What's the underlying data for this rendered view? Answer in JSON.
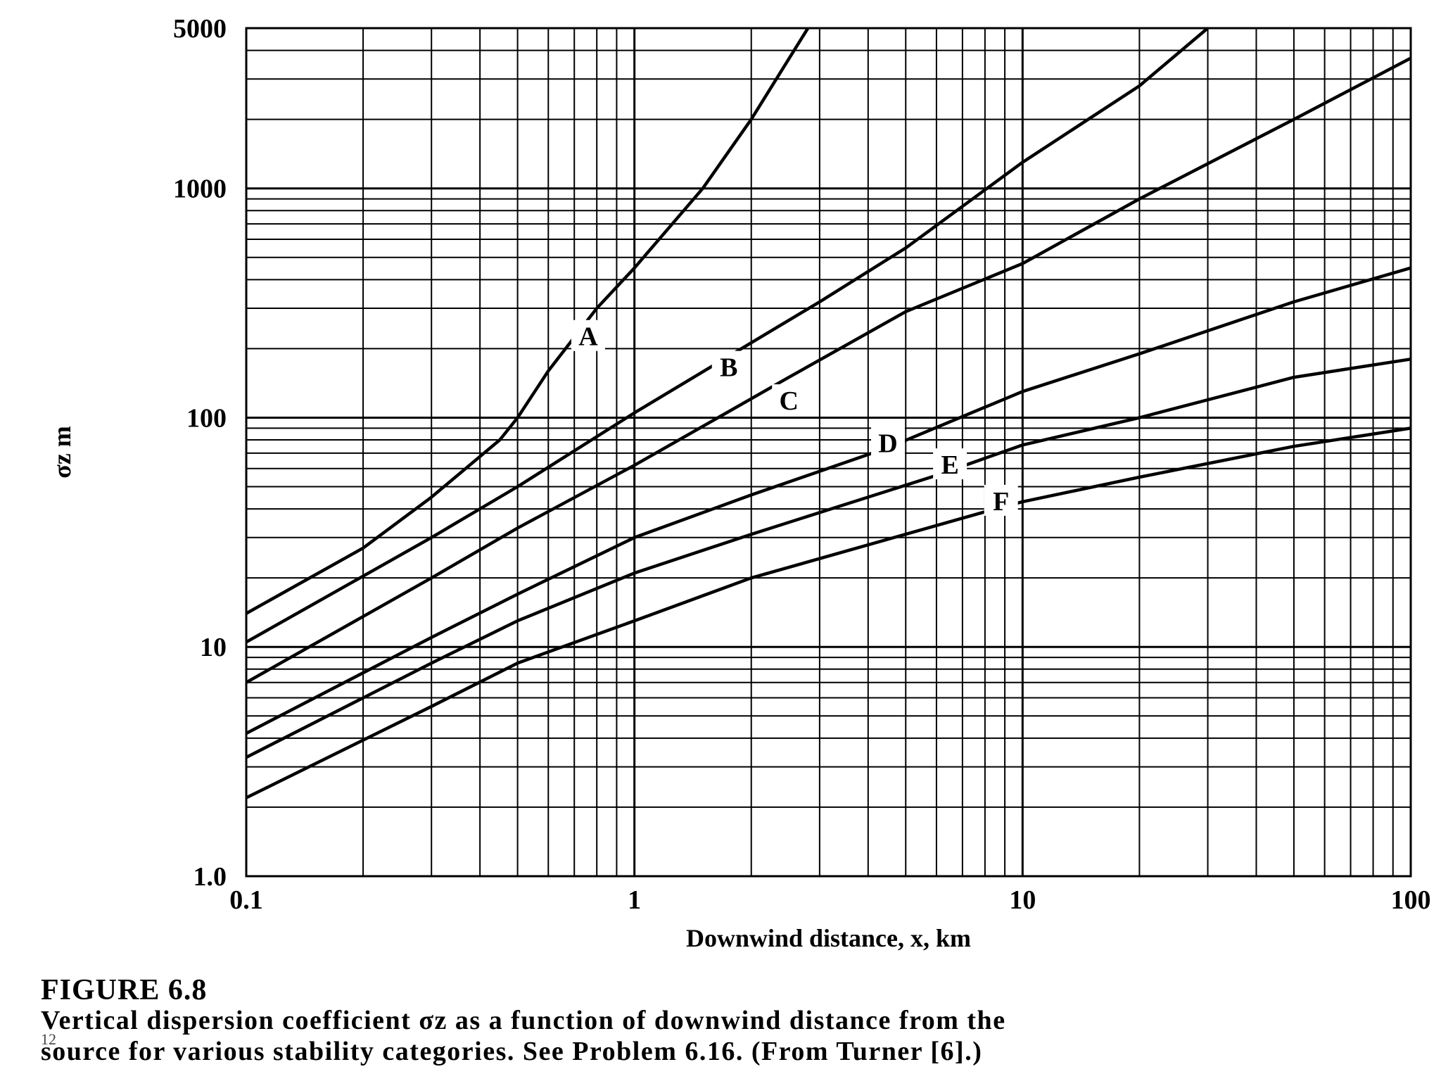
{
  "chart_data": {
    "type": "line",
    "title": "",
    "xlabel": "Downwind distance, x, km",
    "ylabel": "σz m",
    "xscale": "log",
    "yscale": "log",
    "xlim": [
      0.1,
      100
    ],
    "ylim": [
      1.0,
      5000
    ],
    "grid": true,
    "legend": "none (curves labeled inline)",
    "x_ticks": [
      "0.1",
      "1",
      "10",
      "100"
    ],
    "y_ticks": [
      "1.0",
      "10",
      "100",
      "1000",
      "5000"
    ],
    "series": [
      {
        "name": "A",
        "x": [
          0.1,
          0.2,
          0.3,
          0.45,
          0.5,
          0.6,
          0.8,
          1.0,
          1.5,
          2.0,
          2.8
        ],
        "y": [
          14,
          27,
          45,
          80,
          100,
          160,
          300,
          450,
          1000,
          2000,
          5000
        ]
      },
      {
        "name": "B",
        "x": [
          0.1,
          0.3,
          0.5,
          1.0,
          1.7,
          3,
          5,
          10,
          20,
          30
        ],
        "y": [
          10.5,
          30,
          50,
          105,
          180,
          320,
          550,
          1300,
          2800,
          5000
        ]
      },
      {
        "name": "C",
        "x": [
          0.1,
          0.3,
          0.5,
          1.0,
          2.5,
          5,
          10,
          20,
          50,
          100
        ],
        "y": [
          7,
          20,
          33,
          62,
          150,
          290,
          470,
          900,
          2000,
          3700
        ]
      },
      {
        "name": "D",
        "x": [
          0.1,
          0.3,
          0.5,
          1.0,
          2.0,
          4.5,
          10,
          20,
          50,
          100
        ],
        "y": [
          4.2,
          11,
          17,
          30,
          46,
          74,
          130,
          190,
          320,
          450
        ]
      },
      {
        "name": "E",
        "x": [
          0.1,
          0.3,
          0.5,
          1.0,
          2.0,
          6.0,
          10,
          20,
          50,
          100
        ],
        "y": [
          3.3,
          8.5,
          13,
          21,
          31,
          56,
          76,
          100,
          150,
          180
        ]
      },
      {
        "name": "F",
        "x": [
          0.1,
          0.3,
          0.5,
          1.0,
          2.0,
          8.5,
          10,
          20,
          50,
          100
        ],
        "y": [
          2.2,
          5.5,
          8.5,
          13,
          20,
          40,
          43,
          55,
          75,
          90
        ]
      }
    ],
    "label_positions_data": [
      {
        "name": "A",
        "x": 0.76,
        "y": 225
      },
      {
        "name": "B",
        "x": 1.75,
        "y": 165
      },
      {
        "name": "C",
        "x": 2.5,
        "y": 118
      },
      {
        "name": "D",
        "x": 4.5,
        "y": 77
      },
      {
        "name": "E",
        "x": 6.5,
        "y": 62
      },
      {
        "name": "F",
        "x": 8.8,
        "y": 43
      }
    ]
  },
  "figure": {
    "title": "FIGURE 6.8",
    "caption_line1": "Vertical dispersion coefficient σz as a function of downwind distance from the",
    "caption_line2": "source for various stability categories. See Problem 6.16. (From Turner [6].)",
    "page_number": "12"
  }
}
